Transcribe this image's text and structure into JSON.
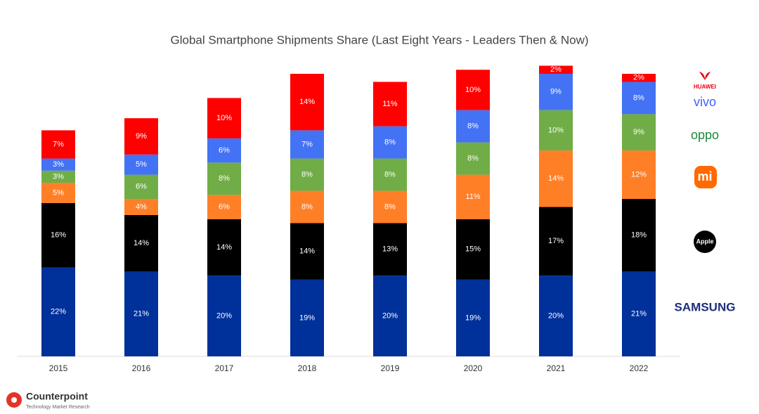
{
  "chart_data": {
    "type": "stacked_bar",
    "title": "Global Smartphone Shipments Share (Last Eight Years - Leaders Then & Now)",
    "categories": [
      "2015",
      "2016",
      "2017",
      "2018",
      "2019",
      "2020",
      "2021",
      "2022"
    ],
    "ylim": [
      0,
      70
    ],
    "series": [
      {
        "name": "SAMSUNG",
        "color": "#00309a",
        "values": [
          22,
          21,
          20,
          19,
          20,
          19,
          20,
          21
        ],
        "value_labels": [
          "22%",
          "21%",
          "20%",
          "19%",
          "20%",
          "19%",
          "20%",
          "21%"
        ]
      },
      {
        "name": "Apple",
        "color": "#000000",
        "values": [
          16,
          14,
          14,
          14,
          13,
          15,
          17,
          18
        ],
        "value_labels": [
          "16%",
          "14%",
          "14%",
          "14%",
          "13%",
          "15%",
          "17%",
          "18%"
        ]
      },
      {
        "name": "mi",
        "color": "#ff7f27",
        "values": [
          5,
          4,
          6,
          8,
          8,
          11,
          14,
          12
        ],
        "value_labels": [
          "5%",
          "4%",
          "6%",
          "8%",
          "8%",
          "11%",
          "14%",
          "12%"
        ]
      },
      {
        "name": "oppo",
        "color": "#70ad47",
        "values": [
          3,
          6,
          8,
          8,
          8,
          8,
          10,
          9
        ],
        "value_labels": [
          "3%",
          "6%",
          "8%",
          "8%",
          "8%",
          "8%",
          "10%",
          "9%"
        ]
      },
      {
        "name": "vivo",
        "color": "#4472f4",
        "values": [
          3,
          5,
          6,
          7,
          8,
          8,
          9,
          8
        ],
        "value_labels": [
          "3%",
          "5%",
          "6%",
          "7%",
          "8%",
          "8%",
          "9%",
          "8%"
        ]
      },
      {
        "name": "HUAWEI",
        "color": "#ff0000",
        "values": [
          7,
          9,
          10,
          14,
          11,
          10,
          2,
          2
        ],
        "value_labels": [
          "7%",
          "9%",
          "10%",
          "14%",
          "11%",
          "10%",
          "2%",
          "2%"
        ]
      }
    ]
  },
  "footer": {
    "brand": "Counterpoint",
    "tagline": "Technology Market Research"
  }
}
